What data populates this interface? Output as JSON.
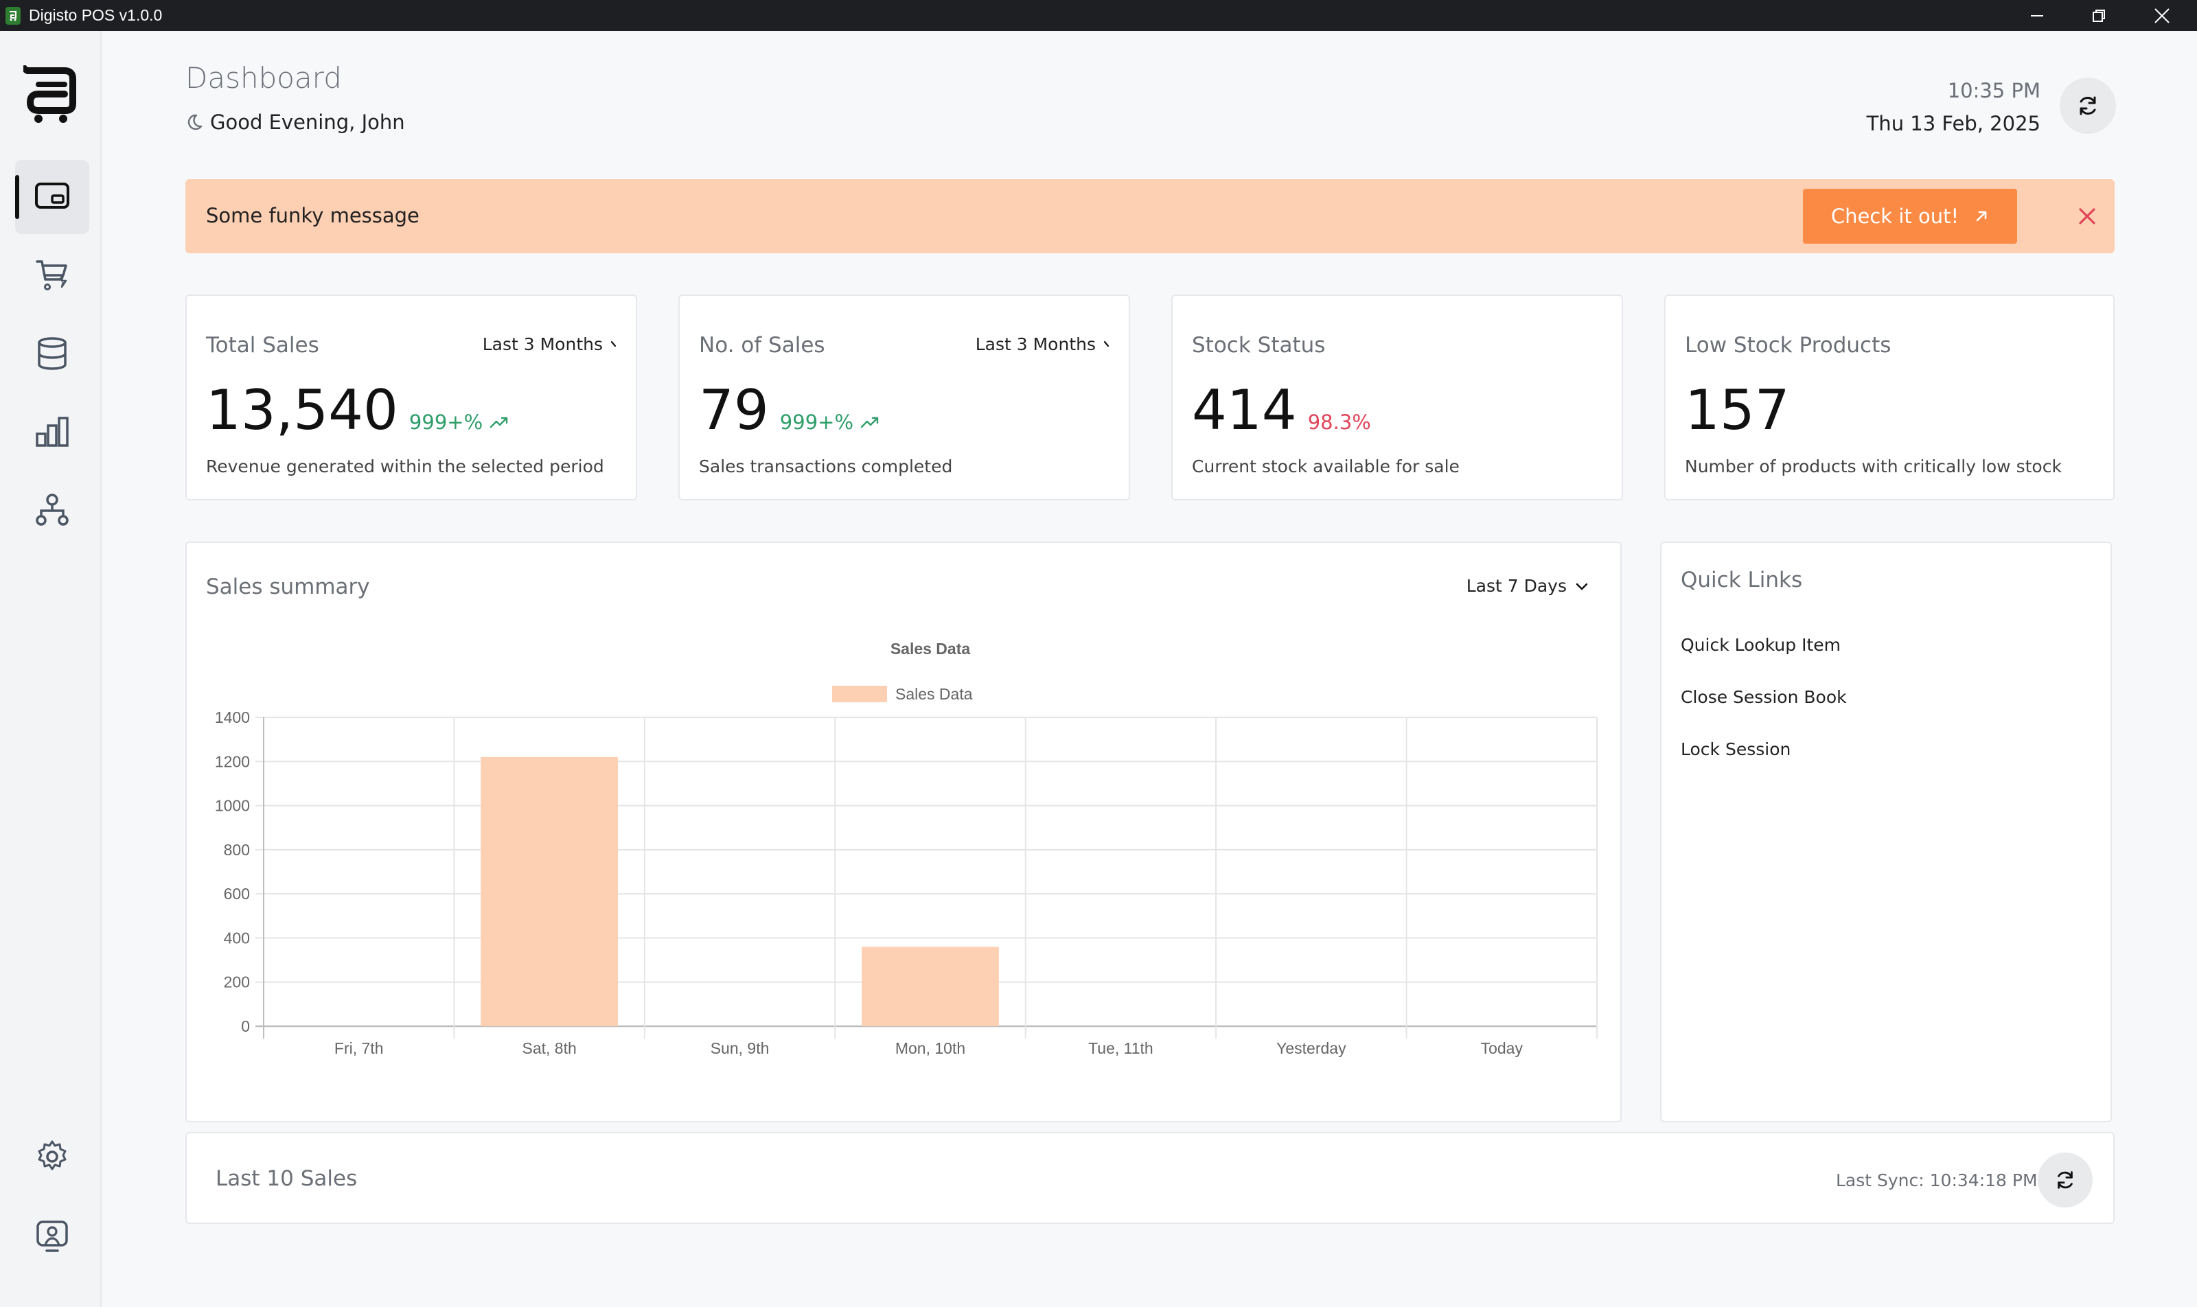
{
  "window": {
    "title": "Digisto POS v1.0.0"
  },
  "sidebar": {
    "logo": "digisto-logo",
    "items": [
      {
        "icon": "dashboard-icon",
        "active": true
      },
      {
        "icon": "cart-icon",
        "active": false
      },
      {
        "icon": "database-icon",
        "active": false
      },
      {
        "icon": "bar-chart-icon",
        "active": false
      },
      {
        "icon": "network-icon",
        "active": false
      }
    ],
    "bottom": [
      {
        "icon": "gear-icon"
      },
      {
        "icon": "user-screen-icon"
      }
    ]
  },
  "header": {
    "title": "Dashboard",
    "greeting": "Good Evening, John",
    "time": "10:35 PM",
    "date": "Thu 13 Feb, 2025"
  },
  "banner": {
    "message": "Some funky message",
    "cta_label": "Check it out!",
    "bg_color": "#fed0b3",
    "cta_color": "#fb8a45",
    "close_color": "#e0455a"
  },
  "stats": [
    {
      "label": "Total Sales",
      "period": "Last 3 Months",
      "value": "13,540",
      "delta": "999+%",
      "trend": "up",
      "desc": "Revenue generated within the selected period"
    },
    {
      "label": "No. of Sales",
      "period": "Last 3 Months",
      "value": "79",
      "delta": "999+%",
      "trend": "up",
      "desc": "Sales transactions completed"
    },
    {
      "label": "Stock Status",
      "period": "",
      "value": "414",
      "delta": "98.3%",
      "trend": "down",
      "desc": "Current stock available for sale"
    },
    {
      "label": "Low Stock Products",
      "period": "",
      "value": "157",
      "delta": "",
      "trend": "",
      "desc": "Number of products with critically low stock"
    }
  ],
  "sales_summary": {
    "title": "Sales summary",
    "period": "Last 7 Days"
  },
  "chart_data": {
    "type": "bar",
    "title": "Sales Data",
    "categories": [
      "Fri, 7th",
      "Sat, 8th",
      "Sun, 9th",
      "Mon, 10th",
      "Tue, 11th",
      "Yesterday",
      "Today"
    ],
    "series": [
      {
        "name": "Sales Data",
        "values": [
          0,
          1220,
          0,
          360,
          0,
          0,
          0
        ],
        "color": "#fed0b3"
      }
    ],
    "ylim": [
      0,
      1400
    ],
    "yticks": [
      0,
      200,
      400,
      600,
      800,
      1000,
      1200,
      1400
    ],
    "grid": true,
    "legend": "top"
  },
  "quick_links": {
    "title": "Quick Links",
    "items": [
      "Quick Lookup Item",
      "Close Session Book",
      "Lock Session"
    ]
  },
  "last_sales": {
    "title": "Last 10 Sales",
    "sync": "Last Sync: 10:34:18 PM"
  }
}
